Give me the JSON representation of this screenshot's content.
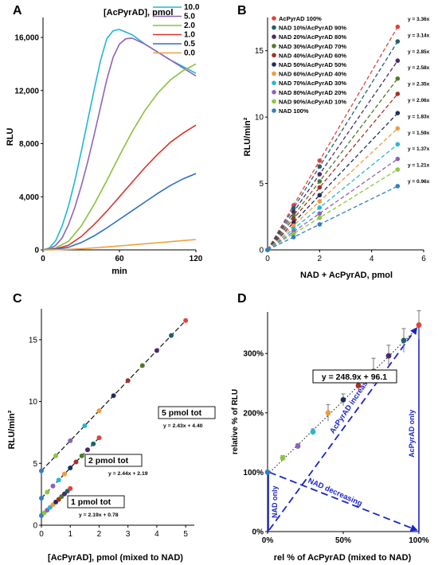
{
  "chart_data": [
    {
      "panel": "A",
      "type": "line",
      "xlabel": "min",
      "ylabel": "RLU",
      "xlim": [
        0,
        120
      ],
      "ylim": [
        0,
        17500
      ],
      "xticks": [
        0,
        60,
        120
      ],
      "yticks": [
        0,
        4000,
        8000,
        12000,
        16000
      ],
      "ytick_labels": [
        "0",
        "4,000",
        "8,000",
        "12,000",
        "16,000"
      ],
      "legend_title": "[AcPyrAD], pmol",
      "legend_position": "top-center",
      "grid": false,
      "series": [
        {
          "name": "10.0",
          "color": "#1fb7d6",
          "points": [
            [
              0,
              0
            ],
            [
              5,
              150
            ],
            [
              10,
              700
            ],
            [
              15,
              1800
            ],
            [
              20,
              3300
            ],
            [
              25,
              5200
            ],
            [
              30,
              7400
            ],
            [
              35,
              9700
            ],
            [
              40,
              12000
            ],
            [
              45,
              14200
            ],
            [
              50,
              15900
            ],
            [
              55,
              16500
            ],
            [
              60,
              16600
            ],
            [
              70,
              16200
            ],
            [
              80,
              15500
            ],
            [
              90,
              14900
            ],
            [
              100,
              14300
            ],
            [
              110,
              13800
            ],
            [
              120,
              13300
            ]
          ]
        },
        {
          "name": "5.0",
          "color": "#8e63b8",
          "points": [
            [
              0,
              0
            ],
            [
              5,
              80
            ],
            [
              10,
              350
            ],
            [
              15,
              900
            ],
            [
              20,
              1900
            ],
            [
              25,
              3200
            ],
            [
              30,
              4800
            ],
            [
              35,
              6600
            ],
            [
              40,
              8600
            ],
            [
              45,
              10700
            ],
            [
              50,
              12800
            ],
            [
              55,
              14500
            ],
            [
              60,
              15500
            ],
            [
              65,
              15900
            ],
            [
              70,
              15950
            ],
            [
              80,
              15500
            ],
            [
              90,
              14900
            ],
            [
              100,
              14300
            ],
            [
              110,
              13700
            ],
            [
              120,
              13100
            ]
          ]
        },
        {
          "name": "2.0",
          "color": "#8cbf3f",
          "points": [
            [
              0,
              0
            ],
            [
              10,
              150
            ],
            [
              20,
              650
            ],
            [
              30,
              1800
            ],
            [
              40,
              3400
            ],
            [
              50,
              5200
            ],
            [
              60,
              7100
            ],
            [
              70,
              8900
            ],
            [
              80,
              10500
            ],
            [
              90,
              11800
            ],
            [
              100,
              12800
            ],
            [
              110,
              13500
            ],
            [
              120,
              14000
            ]
          ]
        },
        {
          "name": "1.0",
          "color": "#d9352c",
          "points": [
            [
              0,
              0
            ],
            [
              10,
              80
            ],
            [
              20,
              350
            ],
            [
              30,
              1000
            ],
            [
              40,
              1900
            ],
            [
              50,
              2900
            ],
            [
              60,
              4000
            ],
            [
              70,
              5100
            ],
            [
              80,
              6200
            ],
            [
              90,
              7200
            ],
            [
              100,
              8100
            ],
            [
              110,
              8800
            ],
            [
              120,
              9400
            ]
          ]
        },
        {
          "name": "0.5",
          "color": "#2f6fc4",
          "points": [
            [
              0,
              0
            ],
            [
              10,
              40
            ],
            [
              20,
              200
            ],
            [
              30,
              550
            ],
            [
              40,
              1050
            ],
            [
              50,
              1650
            ],
            [
              60,
              2300
            ],
            [
              70,
              2950
            ],
            [
              80,
              3600
            ],
            [
              90,
              4250
            ],
            [
              100,
              4850
            ],
            [
              110,
              5350
            ],
            [
              120,
              5750
            ]
          ]
        },
        {
          "name": "0.0",
          "color": "#f0a03c",
          "points": [
            [
              0,
              0
            ],
            [
              10,
              10
            ],
            [
              20,
              40
            ],
            [
              30,
              80
            ],
            [
              40,
              150
            ],
            [
              50,
              220
            ],
            [
              60,
              300
            ],
            [
              70,
              380
            ],
            [
              80,
              460
            ],
            [
              90,
              540
            ],
            [
              100,
              620
            ],
            [
              110,
              700
            ],
            [
              120,
              780
            ]
          ]
        }
      ]
    },
    {
      "panel": "B",
      "type": "scatter",
      "xlabel": "NAD + AcPyrAD, pmol",
      "ylabel": "RLU/min²",
      "xlim": [
        0,
        6
      ],
      "ylim": [
        0,
        17.5
      ],
      "xticks": [
        0,
        2,
        4,
        6
      ],
      "yticks": [
        0,
        5,
        10,
        15
      ],
      "legend_position": "top-left",
      "grid": false,
      "x": [
        0,
        1,
        2,
        5
      ],
      "series": [
        {
          "name": "AcPyrAD 100%",
          "slope": 3.36,
          "equation": "y = 3.36x",
          "color": "#e0433a"
        },
        {
          "name": "NAD 10%/AcPyrAD 90%",
          "slope": 3.14,
          "equation": "y = 3.14x",
          "color": "#1f5f73"
        },
        {
          "name": "NAD 20%/AcPyrAD 80%",
          "slope": 2.85,
          "equation": "y = 2.85x",
          "color": "#4b2a6b"
        },
        {
          "name": "NAD 30%/AcPyrAD 70%",
          "slope": 2.58,
          "equation": "y = 2.58x",
          "color": "#4f7a28"
        },
        {
          "name": "NAD 40%/AcPyrAD 60%",
          "slope": 2.35,
          "equation": "y = 2.35x",
          "color": "#a6302a"
        },
        {
          "name": "NAD 50%/AcPyrAD 50%",
          "slope": 2.06,
          "equation": "y = 2.06x",
          "color": "#1b2f5e"
        },
        {
          "name": "NAD 60%/AcPyrAD 40%",
          "slope": 1.83,
          "equation": "y = 1.83x",
          "color": "#f29a3c"
        },
        {
          "name": "NAD 70%/AcPyrAD 30%",
          "slope": 1.59,
          "equation": "y = 1.59x",
          "color": "#22b8d6"
        },
        {
          "name": "NAD 80%/AcPyrAD 20%",
          "slope": 1.37,
          "equation": "y = 1.37x",
          "color": "#8c63b8"
        },
        {
          "name": "NAD 90%/AcPyrAD 10%",
          "slope": 1.21,
          "equation": "y = 1.21x",
          "color": "#8cc63f"
        },
        {
          "name": "NAD 100%",
          "slope": 0.96,
          "equation": "y = 0.96x",
          "color": "#2f7fc4"
        }
      ]
    },
    {
      "panel": "C",
      "type": "scatter",
      "xlabel": "[AcPyrAD], pmol (mixed to NAD)",
      "ylabel": "RLU/min²",
      "xlim": [
        0,
        5.3
      ],
      "ylim": [
        0,
        17.5
      ],
      "xticks": [
        0,
        1,
        2,
        3,
        4,
        5
      ],
      "yticks": [
        0,
        5,
        10,
        15
      ],
      "grid": false,
      "groups": [
        {
          "label": "5 pmol tot",
          "equation": "y = 2.43x + 4.40",
          "slope": 2.43,
          "intercept": 4.4,
          "x": [
            0,
            0.5,
            1.0,
            1.5,
            2.0,
            2.5,
            3.0,
            3.5,
            4.0,
            4.5,
            5.0
          ]
        },
        {
          "label": "2 pmol tot",
          "equation": "y = 2.44x + 2.19",
          "slope": 2.44,
          "intercept": 2.19,
          "x": [
            0,
            0.2,
            0.4,
            0.6,
            0.8,
            1.0,
            1.2,
            1.4,
            1.6,
            1.8,
            2.0
          ]
        },
        {
          "label": "1 pmol tot",
          "equation": "y = 2.19x + 0.78",
          "slope": 2.19,
          "intercept": 0.78,
          "x": [
            0,
            0.1,
            0.2,
            0.3,
            0.4,
            0.5,
            0.6,
            0.7,
            0.8,
            0.9,
            1.0
          ]
        }
      ],
      "point_colors": [
        "#2f7fc4",
        "#8cc63f",
        "#8c63b8",
        "#22b8d6",
        "#f29a3c",
        "#1b2f5e",
        "#a6302a",
        "#4f7a28",
        "#4b2a6b",
        "#1f5f73",
        "#e0433a"
      ]
    },
    {
      "panel": "D",
      "type": "scatter",
      "xlabel": "rel % of AcPyrAD (mixed to NAD)",
      "ylabel": "relative % of RLU",
      "xlim": [
        0,
        100
      ],
      "ylim": [
        0,
        370
      ],
      "xticks": [
        0,
        50,
        100
      ],
      "xtick_labels": [
        "0%",
        "50%",
        "100%"
      ],
      "yticks": [
        0,
        100,
        200,
        300
      ],
      "ytick_labels": [
        "0%",
        "100%",
        "200%",
        "300%"
      ],
      "grid": false,
      "equation": "y = 248.9x + 96.1",
      "slope_per_fraction": 248.9,
      "intercept": 96.1,
      "points": [
        {
          "x": 0,
          "y": 100,
          "err": 3,
          "color": "#2f7fc4"
        },
        {
          "x": 10,
          "y": 124,
          "err": 4,
          "color": "#8cc63f"
        },
        {
          "x": 20,
          "y": 144,
          "err": 4,
          "color": "#8c63b8"
        },
        {
          "x": 30,
          "y": 168,
          "err": 5,
          "color": "#22b8d6"
        },
        {
          "x": 40,
          "y": 200,
          "err": 14,
          "color": "#f29a3c"
        },
        {
          "x": 50,
          "y": 222,
          "err": 10,
          "color": "#1b2f5e"
        },
        {
          "x": 60,
          "y": 246,
          "err": 8,
          "color": "#a6302a"
        },
        {
          "x": 70,
          "y": 270,
          "err": 22,
          "color": "#4f7a28"
        },
        {
          "x": 80,
          "y": 296,
          "err": 18,
          "color": "#4b2a6b"
        },
        {
          "x": 90,
          "y": 322,
          "err": 20,
          "color": "#1f5f73"
        },
        {
          "x": 100,
          "y": 348,
          "err": 24,
          "color": "#e0433a"
        }
      ],
      "annotations": {
        "nad_only": "NAD only",
        "acpyrad_only": "AcPyrAD only",
        "acpyrad_increasing": "AcPyrAD increasing",
        "nad_decreasing": "NAD decreasing",
        "arrow_color": "#1a25c9"
      }
    }
  ]
}
